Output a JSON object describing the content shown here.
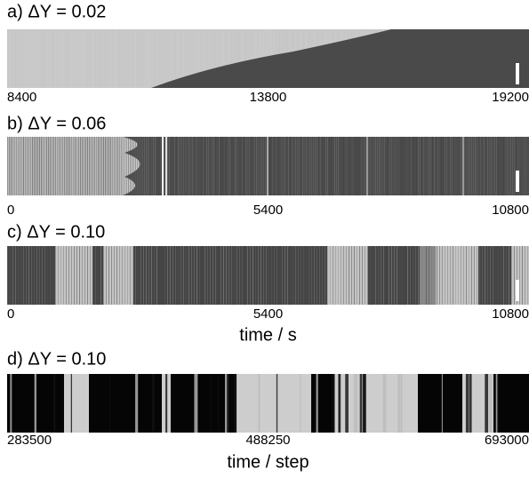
{
  "chart_data": [
    {
      "type": "kymograph",
      "title": "a) ΔY = 0.02",
      "xlim": [
        8400,
        19200
      ],
      "xticks": [
        8400,
        13800,
        19200
      ]
    },
    {
      "type": "kymograph",
      "title": "b) ΔY = 0.06",
      "xlim": [
        0,
        10800
      ],
      "xticks": [
        0,
        5400,
        10800
      ]
    },
    {
      "type": "kymograph",
      "title": "c) ΔY = 0.10",
      "xlim": [
        0,
        10800
      ],
      "xticks": [
        0,
        5400,
        10800
      ],
      "xlabel": "time / s"
    },
    {
      "type": "kymograph",
      "title": "d) ΔY = 0.10",
      "xlim": [
        283500,
        693000
      ],
      "xticks": [
        283500,
        488250,
        693000
      ],
      "xlabel": "time / step"
    }
  ]
}
